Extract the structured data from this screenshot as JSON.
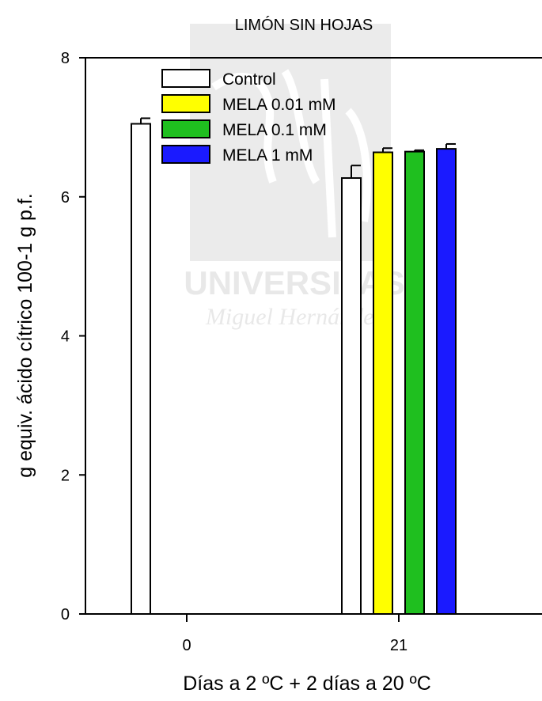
{
  "watermark": {
    "line1": "UNIVERSITAS",
    "line2": "Miguel Hernández"
  },
  "chart_data": {
    "type": "bar",
    "title": "LIMÓN SIN HOJAS",
    "xlabel": "Días a 2 ºC + 2 días a 20 ºC",
    "ylabel": "g equiv. ácido cítrico 100-1 g p.f.",
    "ylim": [
      0,
      8
    ],
    "yticks": [
      0,
      2,
      4,
      6,
      8
    ],
    "categories": [
      "0",
      "21"
    ],
    "legend_position": "top-left",
    "grid": false,
    "series": [
      {
        "name": "Control",
        "color": "#ffffff",
        "values": [
          7.05,
          6.27
        ],
        "errors": [
          0.08,
          0.18
        ]
      },
      {
        "name": "MELA 0.01 mM",
        "color": "#ffff00",
        "values": [
          null,
          6.64
        ],
        "errors": [
          null,
          0.06
        ]
      },
      {
        "name": "MELA 0.1 mM",
        "color": "#1fbf1f",
        "values": [
          null,
          6.65
        ],
        "errors": [
          null,
          0.02
        ]
      },
      {
        "name": "MELA 1 mM",
        "color": "#1a1aff",
        "values": [
          null,
          6.69
        ],
        "errors": [
          null,
          0.07
        ]
      }
    ]
  }
}
